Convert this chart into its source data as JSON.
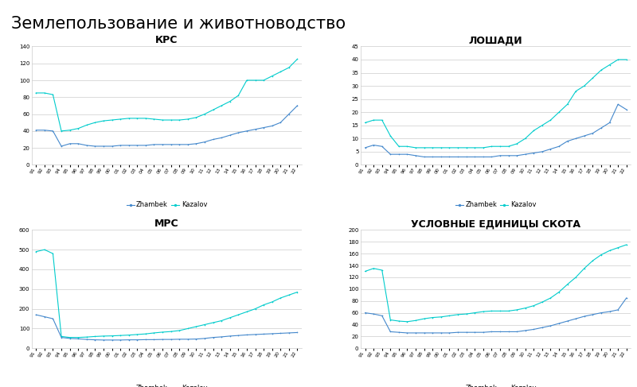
{
  "title": "Землепользование и животноводство",
  "years": [
    1991,
    1992,
    1993,
    1994,
    1995,
    1996,
    1997,
    1998,
    1999,
    2000,
    2001,
    2002,
    2003,
    2004,
    2005,
    2006,
    2007,
    2008,
    2009,
    2010,
    2011,
    2012,
    2013,
    2014,
    2015,
    2016,
    2017,
    2018,
    2019,
    2020,
    2021,
    2022
  ],
  "subplots": [
    {
      "title": "КРС",
      "ylim": [
        0,
        140
      ],
      "yticks": [
        0,
        20,
        40,
        60,
        80,
        100,
        120,
        140
      ],
      "zhambek": [
        41,
        41,
        40,
        22,
        25,
        25,
        23,
        22,
        22,
        22,
        23,
        23,
        23,
        23,
        24,
        24,
        24,
        24,
        24,
        25,
        27,
        30,
        32,
        35,
        38,
        40,
        42,
        44,
        46,
        50,
        60,
        70
      ],
      "kazalov": [
        85,
        85,
        83,
        40,
        41,
        43,
        47,
        50,
        52,
        53,
        54,
        55,
        55,
        55,
        54,
        53,
        53,
        53,
        54,
        56,
        60,
        65,
        70,
        75,
        82,
        100,
        100,
        100,
        105,
        110,
        115,
        125
      ]
    },
    {
      "title": "ЛОШАДИ",
      "ylim": [
        0,
        45
      ],
      "yticks": [
        0,
        5,
        10,
        15,
        20,
        25,
        30,
        35,
        40,
        45
      ],
      "zhambek": [
        6.5,
        7.5,
        7,
        4,
        4,
        4,
        3.5,
        3,
        3,
        3,
        3,
        3,
        3,
        3,
        3,
        3,
        3.5,
        3.5,
        3.5,
        4,
        4.5,
        5,
        6,
        7,
        9,
        10,
        11,
        12,
        14,
        16,
        23,
        21
      ],
      "kazalov": [
        16,
        17,
        17,
        11,
        7,
        7,
        6.5,
        6.5,
        6.5,
        6.5,
        6.5,
        6.5,
        6.5,
        6.5,
        6.5,
        7,
        7,
        7,
        8,
        10,
        13,
        15,
        17,
        20,
        23,
        28,
        30,
        33,
        36,
        38,
        40,
        40
      ]
    },
    {
      "title": "МРС",
      "ylim": [
        0,
        600
      ],
      "yticks": [
        0,
        100,
        200,
        300,
        400,
        500,
        600
      ],
      "zhambek": [
        170,
        160,
        150,
        55,
        50,
        48,
        45,
        43,
        42,
        42,
        42,
        43,
        43,
        44,
        44,
        45,
        45,
        46,
        46,
        47,
        50,
        55,
        58,
        62,
        65,
        68,
        70,
        72,
        74,
        76,
        78,
        80
      ],
      "kazalov": [
        490,
        500,
        480,
        60,
        55,
        55,
        57,
        60,
        62,
        63,
        65,
        67,
        70,
        73,
        78,
        82,
        85,
        90,
        100,
        110,
        120,
        130,
        140,
        155,
        170,
        185,
        200,
        220,
        235,
        255,
        270,
        285
      ]
    },
    {
      "title": "УСЛОВНЫЕ ЕДИНИЦЫ СКОТА",
      "ylim": [
        0,
        200
      ],
      "yticks": [
        0,
        20,
        40,
        60,
        80,
        100,
        120,
        140,
        160,
        180,
        200
      ],
      "zhambek": [
        60,
        58,
        55,
        28,
        27,
        26,
        26,
        26,
        26,
        26,
        26,
        27,
        27,
        27,
        27,
        28,
        28,
        28,
        28,
        30,
        32,
        35,
        38,
        42,
        46,
        50,
        54,
        57,
        60,
        62,
        65,
        85
      ],
      "kazalov": [
        130,
        135,
        132,
        48,
        46,
        45,
        47,
        50,
        52,
        53,
        55,
        57,
        58,
        60,
        62,
        63,
        63,
        63,
        65,
        68,
        72,
        78,
        85,
        95,
        108,
        120,
        135,
        148,
        158,
        165,
        170,
        175
      ]
    }
  ],
  "color_zhambek": "#4488cc",
  "color_kazalov": "#00cccc",
  "legend_labels": [
    "Zhambek",
    "Kazalov"
  ],
  "background_color": "#ffffff",
  "subplot_bg": "#ffffff",
  "grid_color": "#cccccc",
  "title_fontsize": 15,
  "subplot_title_fontsize": 9,
  "tick_fontsize": 5,
  "legend_fontsize": 6
}
